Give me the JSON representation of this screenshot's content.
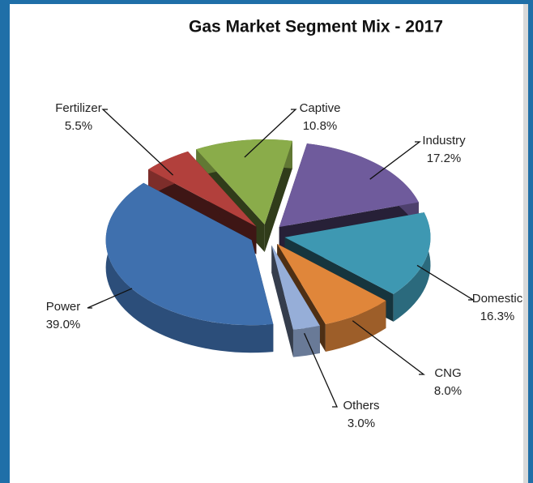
{
  "chart_data": {
    "type": "pie3d",
    "title": "Gas Market Segment Mix - 2017",
    "categories": [
      "Captive",
      "Industry",
      "Domestic",
      "CNG",
      "Others",
      "Power",
      "Fertilizer"
    ],
    "values": [
      10.8,
      17.2,
      16.3,
      8.0,
      3.0,
      39.0,
      5.5
    ],
    "value_labels": [
      "10.8%",
      "17.2%",
      "16.3%",
      "8.0%",
      "3.0%",
      "39.0%",
      "5.5%"
    ],
    "colors": [
      "#8aac4a",
      "#6f5b9c",
      "#3e98b2",
      "#e0863a",
      "#96aed8",
      "#3f70ae",
      "#b2403c"
    ]
  }
}
